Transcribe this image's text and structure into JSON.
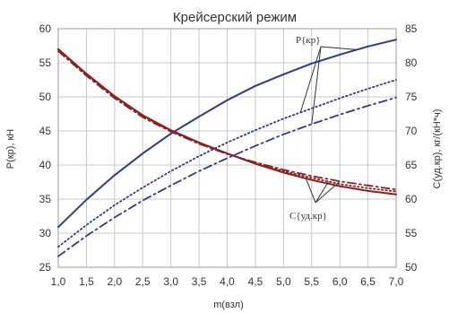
{
  "chart_data": {
    "type": "line",
    "title": "Крейсерский режим",
    "xlabel": "m(взл)",
    "ylabel_left": "P(кр), кН",
    "ylabel_right": "C(уд.кр), кг/(кН*ч)",
    "x_ticks": [
      "1,0",
      "1,5",
      "2,0",
      "2,5",
      "3,0",
      "3,5",
      "4,0",
      "4,5",
      "5,0",
      "5,5",
      "6,0",
      "6,5",
      "7,0"
    ],
    "y_left_ticks": [
      "25",
      "30",
      "35",
      "40",
      "45",
      "50",
      "55",
      "60"
    ],
    "y_right_ticks": [
      "50",
      "55",
      "60",
      "65",
      "70",
      "75",
      "80",
      "85"
    ],
    "xlim": [
      1.0,
      7.0
    ],
    "ylim_left": [
      25,
      60
    ],
    "ylim_right": [
      50,
      85
    ],
    "grid": true,
    "x": [
      1.0,
      1.5,
      2.0,
      2.5,
      3.0,
      3.5,
      4.0,
      4.5,
      5.0,
      5.5,
      6.0,
      6.5,
      7.0
    ],
    "series": [
      {
        "axis": "left",
        "color": "#2e3a8c",
        "dash": "solid",
        "values": [
          30.9,
          34.9,
          38.5,
          41.7,
          44.6,
          47.1,
          49.5,
          51.6,
          53.3,
          54.9,
          56.2,
          57.4,
          58.4
        ]
      },
      {
        "axis": "left",
        "color": "#2e3a8c",
        "dash": "dot",
        "values": [
          28.0,
          31.2,
          34.1,
          36.7,
          39.1,
          41.3,
          43.3,
          45.1,
          46.8,
          48.3,
          49.8,
          51.2,
          52.5
        ]
      },
      {
        "axis": "left",
        "color": "#2e3a8c",
        "dash": "dashdot",
        "values": [
          26.6,
          29.6,
          32.3,
          34.8,
          37.0,
          39.1,
          41.0,
          42.8,
          44.5,
          46.0,
          47.4,
          48.7,
          49.9
        ]
      },
      {
        "axis": "right",
        "color": "#8a2020",
        "dash": "solid",
        "values": [
          82.0,
          78.4,
          75.1,
          72.3,
          70.1,
          68.3,
          66.7,
          65.2,
          63.9,
          62.8,
          61.9,
          61.2,
          60.7
        ]
      },
      {
        "axis": "right",
        "color": "#8a2020",
        "dash": "dot",
        "values": [
          81.9,
          78.3,
          75.0,
          72.2,
          70.0,
          68.2,
          66.7,
          65.3,
          64.1,
          63.1,
          62.2,
          61.6,
          61.1
        ]
      },
      {
        "axis": "right",
        "color": "#8a2020",
        "dash": "dashdot",
        "values": [
          81.7,
          78.1,
          74.8,
          72.0,
          69.9,
          68.1,
          66.6,
          65.4,
          64.3,
          63.4,
          62.6,
          62.0,
          61.4
        ]
      }
    ],
    "annotations": [
      {
        "text": "P{кр}",
        "color": "#333333"
      },
      {
        "text": "C{уд.кр}",
        "color": "#333333"
      }
    ]
  }
}
